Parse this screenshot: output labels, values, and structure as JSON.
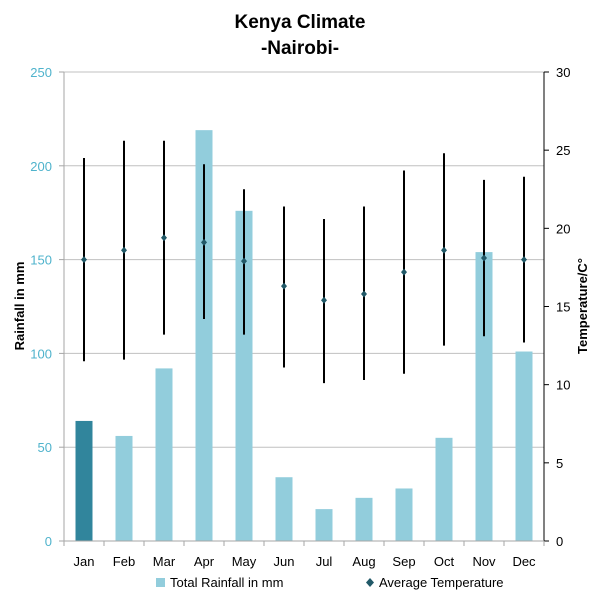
{
  "chart_data": {
    "type": "bar",
    "title": "Kenya Climate",
    "subtitle": "-Nairobi-",
    "categories": [
      "Jan",
      "Feb",
      "Mar",
      "Apr",
      "May",
      "Jun",
      "Jul",
      "Aug",
      "Sep",
      "Oct",
      "Nov",
      "Dec"
    ],
    "series": [
      {
        "name": "Total Rainfall in mm",
        "type": "bar",
        "axis": "left",
        "color": "#92cddc",
        "highlight_color": "#31859c",
        "highlight_index": 0,
        "values": [
          64,
          56,
          92,
          219,
          176,
          34,
          17,
          23,
          28,
          55,
          154,
          101
        ]
      },
      {
        "name": "Average Temperature",
        "type": "scatter",
        "axis": "right",
        "color": "#215968",
        "marker": "diamond",
        "values": [
          18.0,
          18.6,
          19.4,
          19.1,
          17.9,
          16.3,
          15.4,
          15.8,
          17.2,
          18.6,
          18.1,
          18.0
        ],
        "high": [
          24.5,
          25.6,
          25.6,
          24.1,
          22.5,
          21.4,
          20.6,
          21.4,
          23.7,
          24.8,
          23.1,
          23.3
        ],
        "low": [
          11.5,
          11.6,
          13.2,
          14.2,
          13.2,
          11.1,
          10.1,
          10.3,
          10.7,
          12.5,
          13.1,
          12.7
        ]
      }
    ],
    "ylabel": "Rainfall in mm",
    "ylim": [
      0,
      250
    ],
    "yticks": [
      0,
      50,
      100,
      150,
      200,
      250
    ],
    "y2label": "Temperature/C°",
    "y2lim": [
      0,
      30
    ],
    "y2ticks": [
      0,
      5,
      10,
      15,
      20,
      25,
      30
    ],
    "grid": true,
    "legend_position": "bottom",
    "colors": {
      "left_axis_text": "#4fb3cc",
      "grid": "#c0c0c0"
    }
  }
}
